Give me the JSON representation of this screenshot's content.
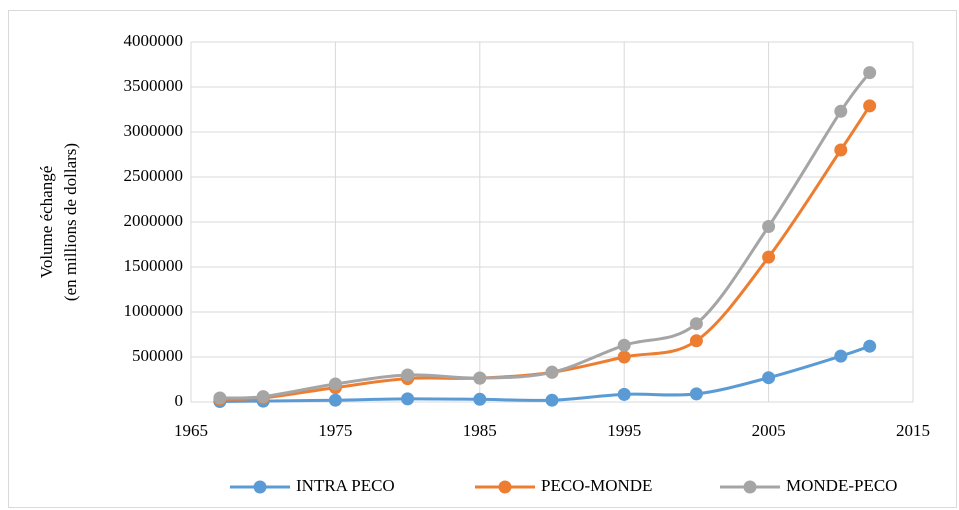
{
  "chart_data": {
    "type": "line",
    "y_label": [
      "Volume échangé",
      "(en millions de dollars)"
    ],
    "x": [
      1967,
      1970,
      1975,
      1980,
      1985,
      1990,
      1995,
      2000,
      2005,
      2010,
      2012
    ],
    "series": [
      {
        "name": "INTRA PECO",
        "color": "#5b9bd5",
        "values": [
          5000,
          10000,
          20000,
          35000,
          30000,
          20000,
          85000,
          90000,
          270000,
          510000,
          620000
        ]
      },
      {
        "name": "PECO-MONDE",
        "color": "#ed7d31",
        "values": [
          30000,
          45000,
          160000,
          260000,
          265000,
          330000,
          500000,
          680000,
          1610000,
          2800000,
          3290000
        ]
      },
      {
        "name": "MONDE-PECO",
        "color": "#a5a5a5",
        "values": [
          45000,
          60000,
          200000,
          300000,
          265000,
          330000,
          630000,
          870000,
          1950000,
          3230000,
          3660000
        ]
      }
    ],
    "xlim": [
      1965,
      2015
    ],
    "xticks": [
      1965,
      1975,
      1985,
      1995,
      2005,
      2015
    ],
    "ylim": [
      0,
      4000000
    ],
    "yticks": [
      0,
      500000,
      1000000,
      1500000,
      2000000,
      2500000,
      3000000,
      3500000,
      4000000
    ],
    "grid": true,
    "smooth": true,
    "legend": "bottom"
  }
}
